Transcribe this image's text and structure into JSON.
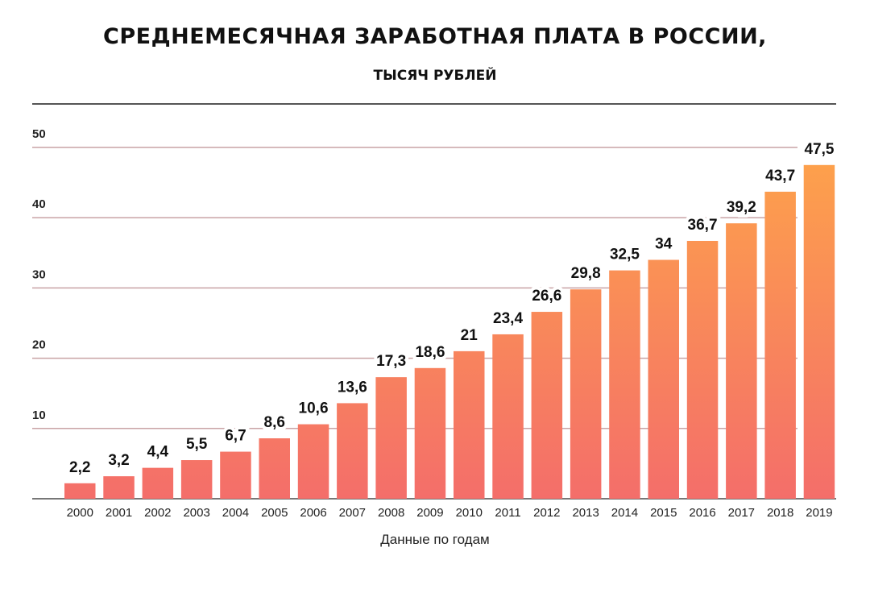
{
  "chart_data": {
    "type": "bar",
    "title": "СРЕДНЕМЕСЯЧНАЯ ЗАРАБОТНАЯ ПЛАТА В РОССИИ,",
    "subtitle": "ТЫСЯЧ РУБЛЕЙ",
    "xlabel": "Данные по годам",
    "ylabel": "",
    "categories": [
      "2000",
      "2001",
      "2002",
      "2003",
      "2004",
      "2005",
      "2006",
      "2007",
      "2008",
      "2009",
      "2010",
      "2011",
      "2012",
      "2013",
      "2014",
      "2015",
      "2016",
      "2017",
      "2018",
      "2019"
    ],
    "values": [
      2.2,
      3.2,
      4.4,
      5.5,
      6.7,
      8.6,
      10.6,
      13.6,
      17.3,
      18.6,
      21,
      23.4,
      26.6,
      29.8,
      32.5,
      34,
      36.7,
      39.2,
      43.7,
      47.5
    ],
    "data_labels": [
      "2,2",
      "3,2",
      "4,4",
      "5,5",
      "6,7",
      "8,6",
      "10,6",
      "13,6",
      "17,3",
      "18,6",
      "21",
      "23,4",
      "26,6",
      "29,8",
      "32,5",
      "34",
      "36,7",
      "39,2",
      "43,7",
      "47,5"
    ],
    "yticks": [
      "10",
      "20",
      "30",
      "40",
      "50"
    ],
    "ylim": [
      0,
      50
    ],
    "grid": true,
    "legend": "none",
    "colors": {
      "bar_bottom": "#f46e6a",
      "bar_top": "#fda04c",
      "grid": "#c9a3a5",
      "text": "#111111"
    }
  }
}
